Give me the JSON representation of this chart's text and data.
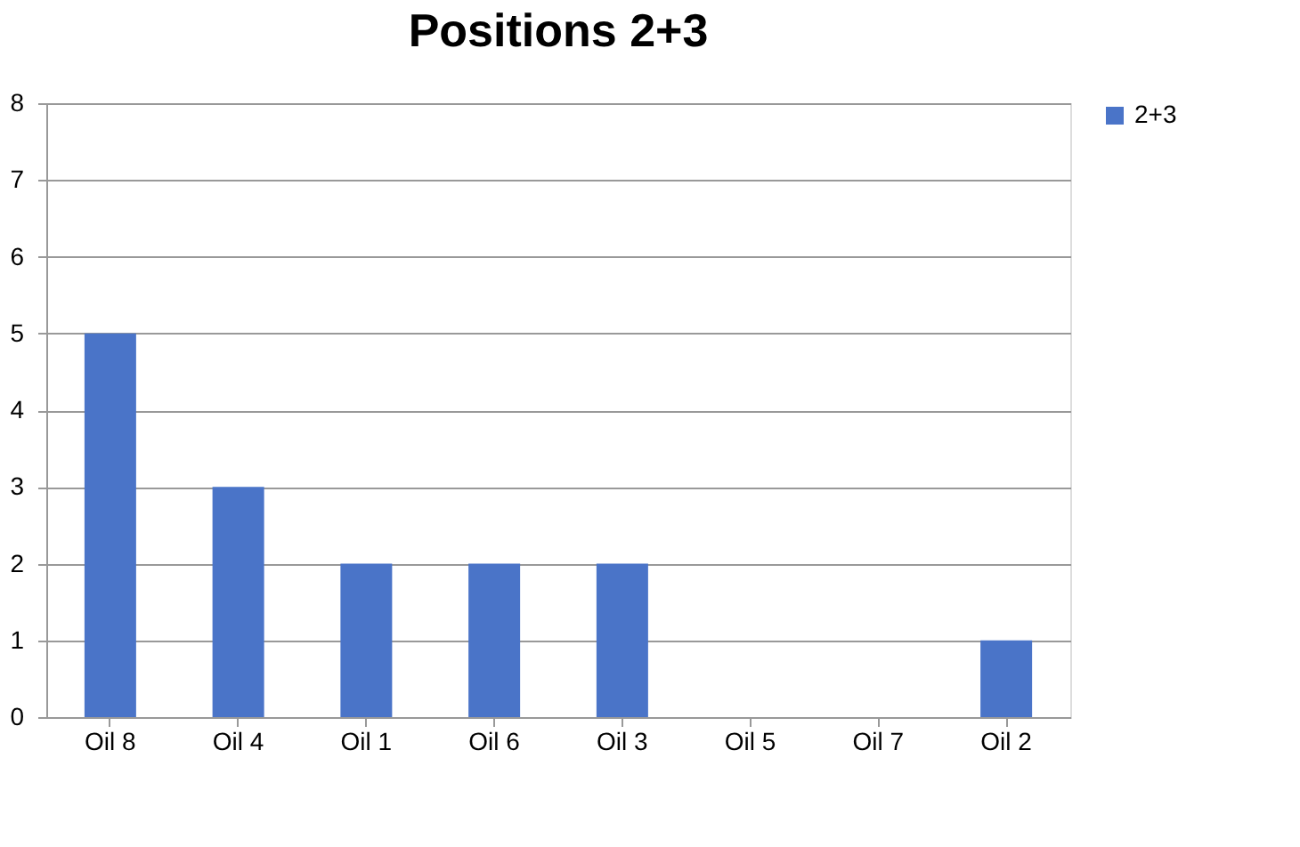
{
  "chart_data": {
    "type": "bar",
    "title": "Positions 2+3",
    "categories": [
      "Oil 8",
      "Oil 4",
      "Oil 1",
      "Oil 6",
      "Oil 3",
      "Oil 5",
      "Oil 7",
      "Oil 2"
    ],
    "series": [
      {
        "name": "2+3",
        "color": "#4a74c8",
        "values": [
          5,
          3,
          2,
          2,
          2,
          0,
          0,
          1
        ]
      }
    ],
    "ylim": [
      0,
      8
    ],
    "yticks": [
      0,
      1,
      2,
      3,
      4,
      5,
      6,
      7,
      8
    ],
    "grid": "y",
    "legend": "right"
  }
}
